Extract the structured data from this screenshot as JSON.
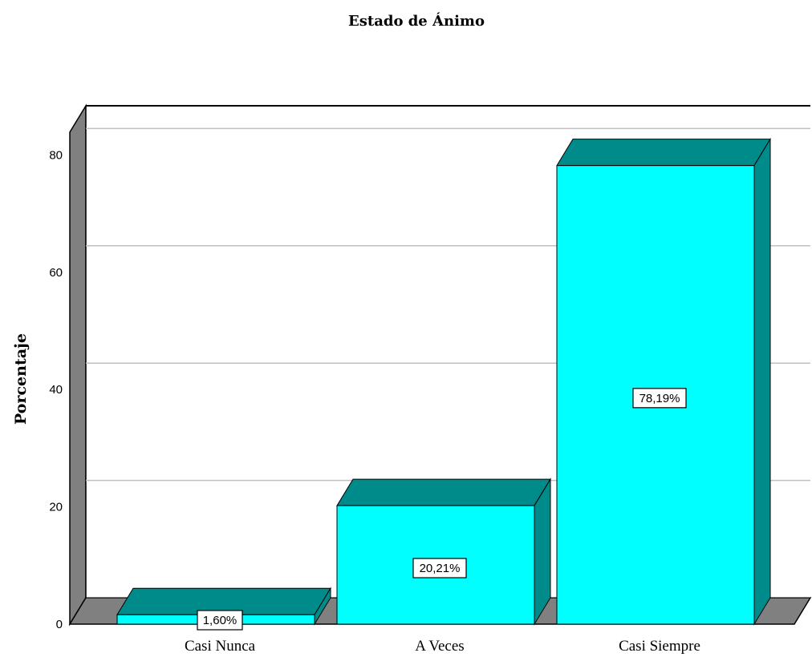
{
  "chart_data": {
    "type": "bar",
    "title": "Estado de Ánimo",
    "ylabel": "Porcentaje",
    "xlabel": "",
    "categories": [
      "Casi Nunca",
      "A Veces",
      "Casi Siempre"
    ],
    "values": [
      1.6,
      20.21,
      78.19
    ],
    "data_labels": [
      "1,60%",
      "20,21%",
      "78,19%"
    ],
    "yticks": [
      "0",
      "20",
      "40",
      "60",
      "80"
    ],
    "ylim": [
      0,
      85
    ],
    "grid": true,
    "legend": "none",
    "style": "3d",
    "colors": {
      "bar_front": "#00FFFF",
      "bar_side": "#008B8B",
      "wall": "#808080",
      "gridline": "#C0C0C0",
      "background": "#FFFFFF"
    }
  }
}
